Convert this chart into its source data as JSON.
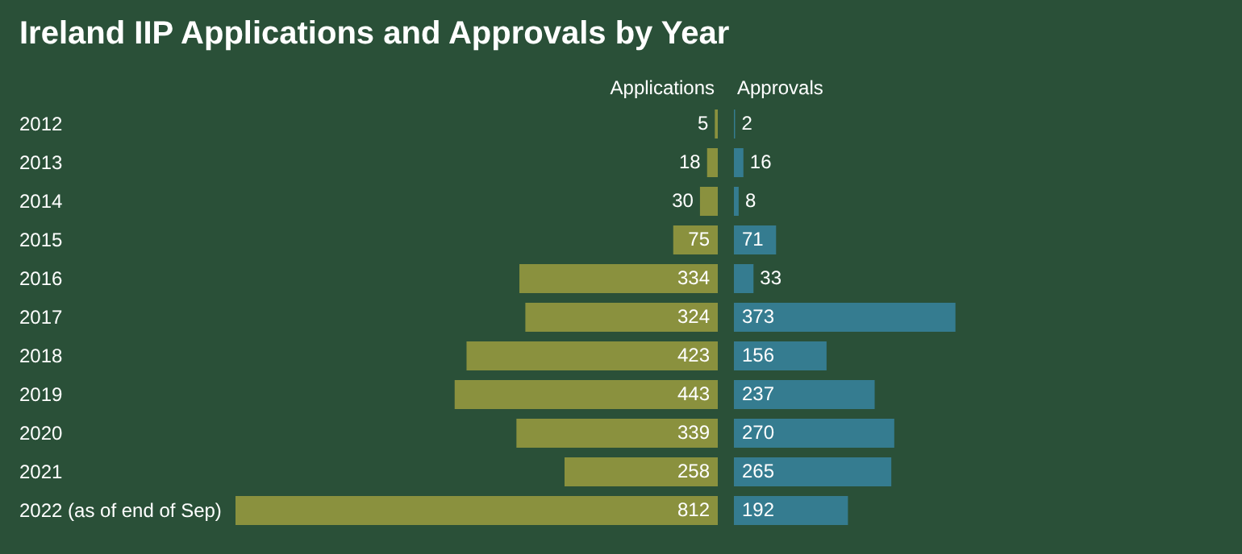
{
  "chart_data": [
    {
      "type": "bar",
      "orientation": "horizontal",
      "title": "Ireland IIP Applications and Approvals by Year",
      "categories": [
        "2012",
        "2013",
        "2014",
        "2015",
        "2016",
        "2017",
        "2018",
        "2019",
        "2020",
        "2021",
        "2022 (as of end of Sep)"
      ],
      "series": [
        {
          "name": "Applications",
          "color": "#8a913e",
          "values": [
            5,
            18,
            30,
            75,
            334,
            324,
            423,
            443,
            339,
            258,
            812
          ]
        }
      ],
      "data_labels": true,
      "legend": false
    },
    {
      "type": "bar",
      "orientation": "horizontal",
      "categories": [
        null,
        null,
        null,
        null,
        null,
        null,
        null,
        null,
        null,
        null,
        null
      ],
      "series": [
        {
          "name": "Approvals",
          "color": "#357c90",
          "values": [
            2,
            16,
            8,
            71,
            33,
            373,
            156,
            237,
            270,
            265,
            192
          ]
        }
      ],
      "data_labels": true,
      "legend": false
    }
  ]
}
